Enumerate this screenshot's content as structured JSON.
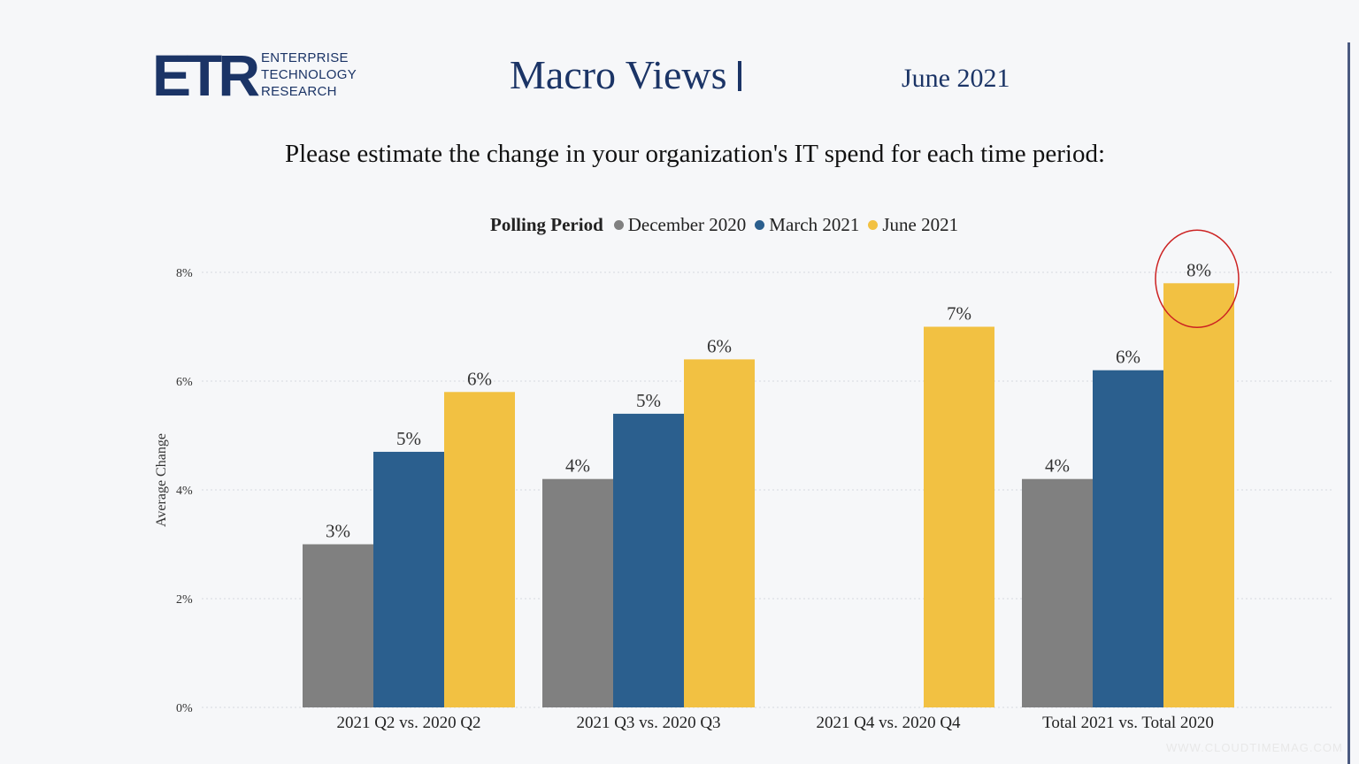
{
  "header": {
    "logo_mark": "ETR",
    "logo_lines": [
      "ENTERPRISE",
      "TECHNOLOGY",
      "RESEARCH"
    ],
    "title": "Macro Views",
    "date": "June 2021"
  },
  "question": "Please estimate the change in your organization's IT spend for each time period:",
  "watermark": "WWW.CLOUDTIMEMAG.COM",
  "chart_data": {
    "type": "bar",
    "legend_title": "Polling Period",
    "legend_position": "top",
    "categories": [
      "2021 Q2 vs. 2020 Q2",
      "2021 Q3 vs. 2020 Q3",
      "2021 Q4 vs. 2020 Q4",
      "Total 2021 vs. Total 2020"
    ],
    "series": [
      {
        "name": "December 2020",
        "color": "#808080",
        "values": [
          3.0,
          4.2,
          null,
          4.2
        ],
        "labels": [
          "3%",
          "4%",
          null,
          "4%"
        ]
      },
      {
        "name": "March 2021",
        "color": "#2b5f8e",
        "values": [
          4.7,
          5.4,
          null,
          6.2
        ],
        "labels": [
          "5%",
          "5%",
          null,
          "6%"
        ]
      },
      {
        "name": "June 2021",
        "color": "#f2c142",
        "values": [
          5.8,
          6.4,
          7.0,
          7.8
        ],
        "labels": [
          "6%",
          "6%",
          "7%",
          "8%"
        ]
      }
    ],
    "ylabel": "Average Change",
    "ylim": [
      0,
      8
    ],
    "yticks": [
      "0%",
      "2%",
      "4%",
      "6%",
      "8%"
    ],
    "ytick_values": [
      0,
      2,
      4,
      6,
      8
    ],
    "grid": true,
    "highlight": {
      "category_index": 3,
      "series_index": 2,
      "color": "#cc2222",
      "shape": "circle"
    }
  }
}
